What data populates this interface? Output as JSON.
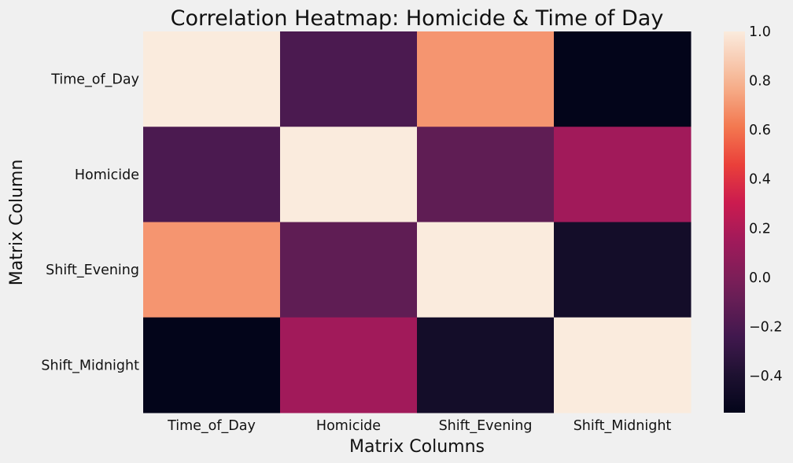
{
  "chart_data": {
    "type": "heatmap",
    "title": "Correlation Heatmap: Homicide & Time of Day",
    "xlabel": "Matrix Columns",
    "ylabel": "Matrix Column",
    "x_categories": [
      "Time_of_Day",
      "Homicide",
      "Shift_Evening",
      "Shift_Midnight"
    ],
    "y_categories": [
      "Time_of_Day",
      "Homicide",
      "Shift_Evening",
      "Shift_Midnight"
    ],
    "values": [
      [
        1.0,
        -0.2,
        0.7,
        -0.55
      ],
      [
        -0.2,
        1.0,
        -0.12,
        0.15
      ],
      [
        0.7,
        -0.12,
        1.0,
        -0.45
      ],
      [
        -0.55,
        0.15,
        -0.45,
        1.0
      ]
    ],
    "colorscale": "rocket",
    "vmin": -0.55,
    "vmax": 1.0,
    "colorbar_ticks": [
      1.0,
      0.8,
      0.6,
      0.4,
      0.2,
      0.0,
      -0.2,
      -0.4
    ],
    "colorbar_tick_labels": [
      "1.0",
      "0.8",
      "0.6",
      "0.4",
      "0.2",
      "0.0",
      "−0.2",
      "−0.4"
    ],
    "grid": false,
    "background_color": "#f0f0f0"
  }
}
